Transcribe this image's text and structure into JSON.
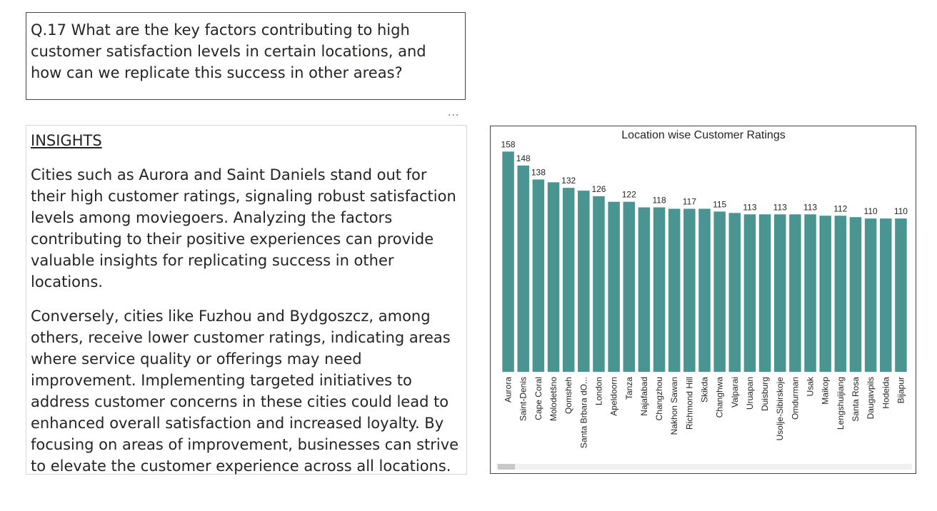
{
  "question": {
    "text": "Q.17 What are the key factors contributing to high customer satisfaction levels in certain locations, and how can we replicate this success in other areas?"
  },
  "more_options": "...",
  "insights": {
    "heading": "INSIGHTS",
    "paragraph1": "Cities such as Aurora and Saint Daniels stand out for their high customer ratings, signaling robust satisfaction levels among moviegoers. Analyzing the factors contributing to their positive experiences can provide valuable insights for replicating success in other locations.",
    "paragraph2": "Conversely, cities like Fuzhou and Bydgoszcz, among others, receive lower customer ratings, indicating areas where service quality or offerings may need improvement. Implementing targeted initiatives to address customer concerns in these cities could lead to enhanced overall satisfaction and increased loyalty. By focusing on areas of improvement, businesses can strive to elevate the customer experience across all locations."
  },
  "colors": {
    "bar": "#4A9492"
  },
  "chart_data": {
    "type": "bar",
    "title": "Location wise Customer Ratings",
    "categories": [
      "Aurora",
      "Saint-Denis",
      "Cape Coral",
      "Molodetšno",
      "Qomsheh",
      "Santa Brbara dO...",
      "London",
      "Apeldoorn",
      "Tanza",
      "Najafabad",
      "Changzhou",
      "Nakhon Sawan",
      "Richmond Hill",
      "Skikda",
      "Changhwa",
      "Valparai",
      "Uruapan",
      "Duisburg",
      "Usolje-Sibirskoje",
      "Omdurman",
      "Usak",
      "Maikop",
      "Lengshuijiang",
      "Santa Rosa",
      "Daugavpils",
      "Hodeida",
      "Bijapur"
    ],
    "values": [
      158,
      148,
      138,
      136,
      132,
      130,
      126,
      122,
      122,
      118,
      118,
      117,
      117,
      117,
      115,
      114,
      113,
      113,
      113,
      113,
      113,
      112,
      112,
      111,
      110,
      110,
      110
    ],
    "data_labels": [
      "158",
      "148",
      "138",
      "",
      "132",
      "",
      "126",
      "",
      "122",
      "",
      "118",
      "",
      "117",
      "",
      "115",
      "",
      "113",
      "",
      "113",
      "",
      "113",
      "",
      "112",
      "",
      "110",
      "",
      "110"
    ],
    "ylim": [
      0,
      170
    ]
  }
}
